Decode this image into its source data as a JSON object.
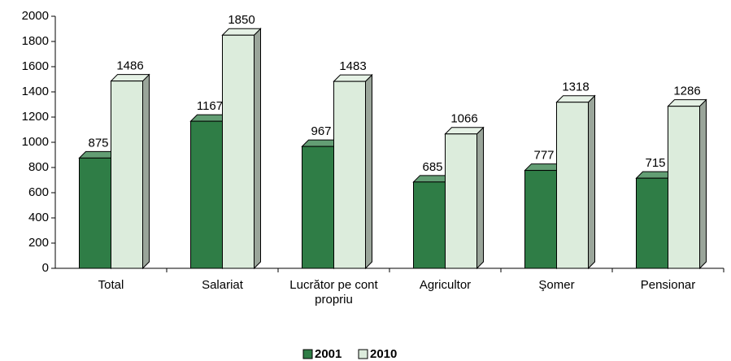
{
  "chart_data": {
    "type": "bar3d",
    "categories": [
      "Total",
      "Salariat",
      "Lucrător pe cont propriu",
      "Agricultor",
      "Şomer",
      "Pensionar"
    ],
    "series": [
      {
        "name": "2001",
        "color": "#2f7d46",
        "values": [
          875,
          1167,
          967,
          685,
          777,
          715
        ]
      },
      {
        "name": "2010",
        "color": "#dcecdc",
        "values": [
          1486,
          1850,
          1483,
          1066,
          1318,
          1286
        ]
      }
    ],
    "ylim": [
      0,
      2000
    ],
    "yticks": [
      0,
      200,
      400,
      600,
      800,
      1000,
      1200,
      1400,
      1600,
      1800,
      2000
    ],
    "grid": false,
    "legend": "bottom"
  }
}
